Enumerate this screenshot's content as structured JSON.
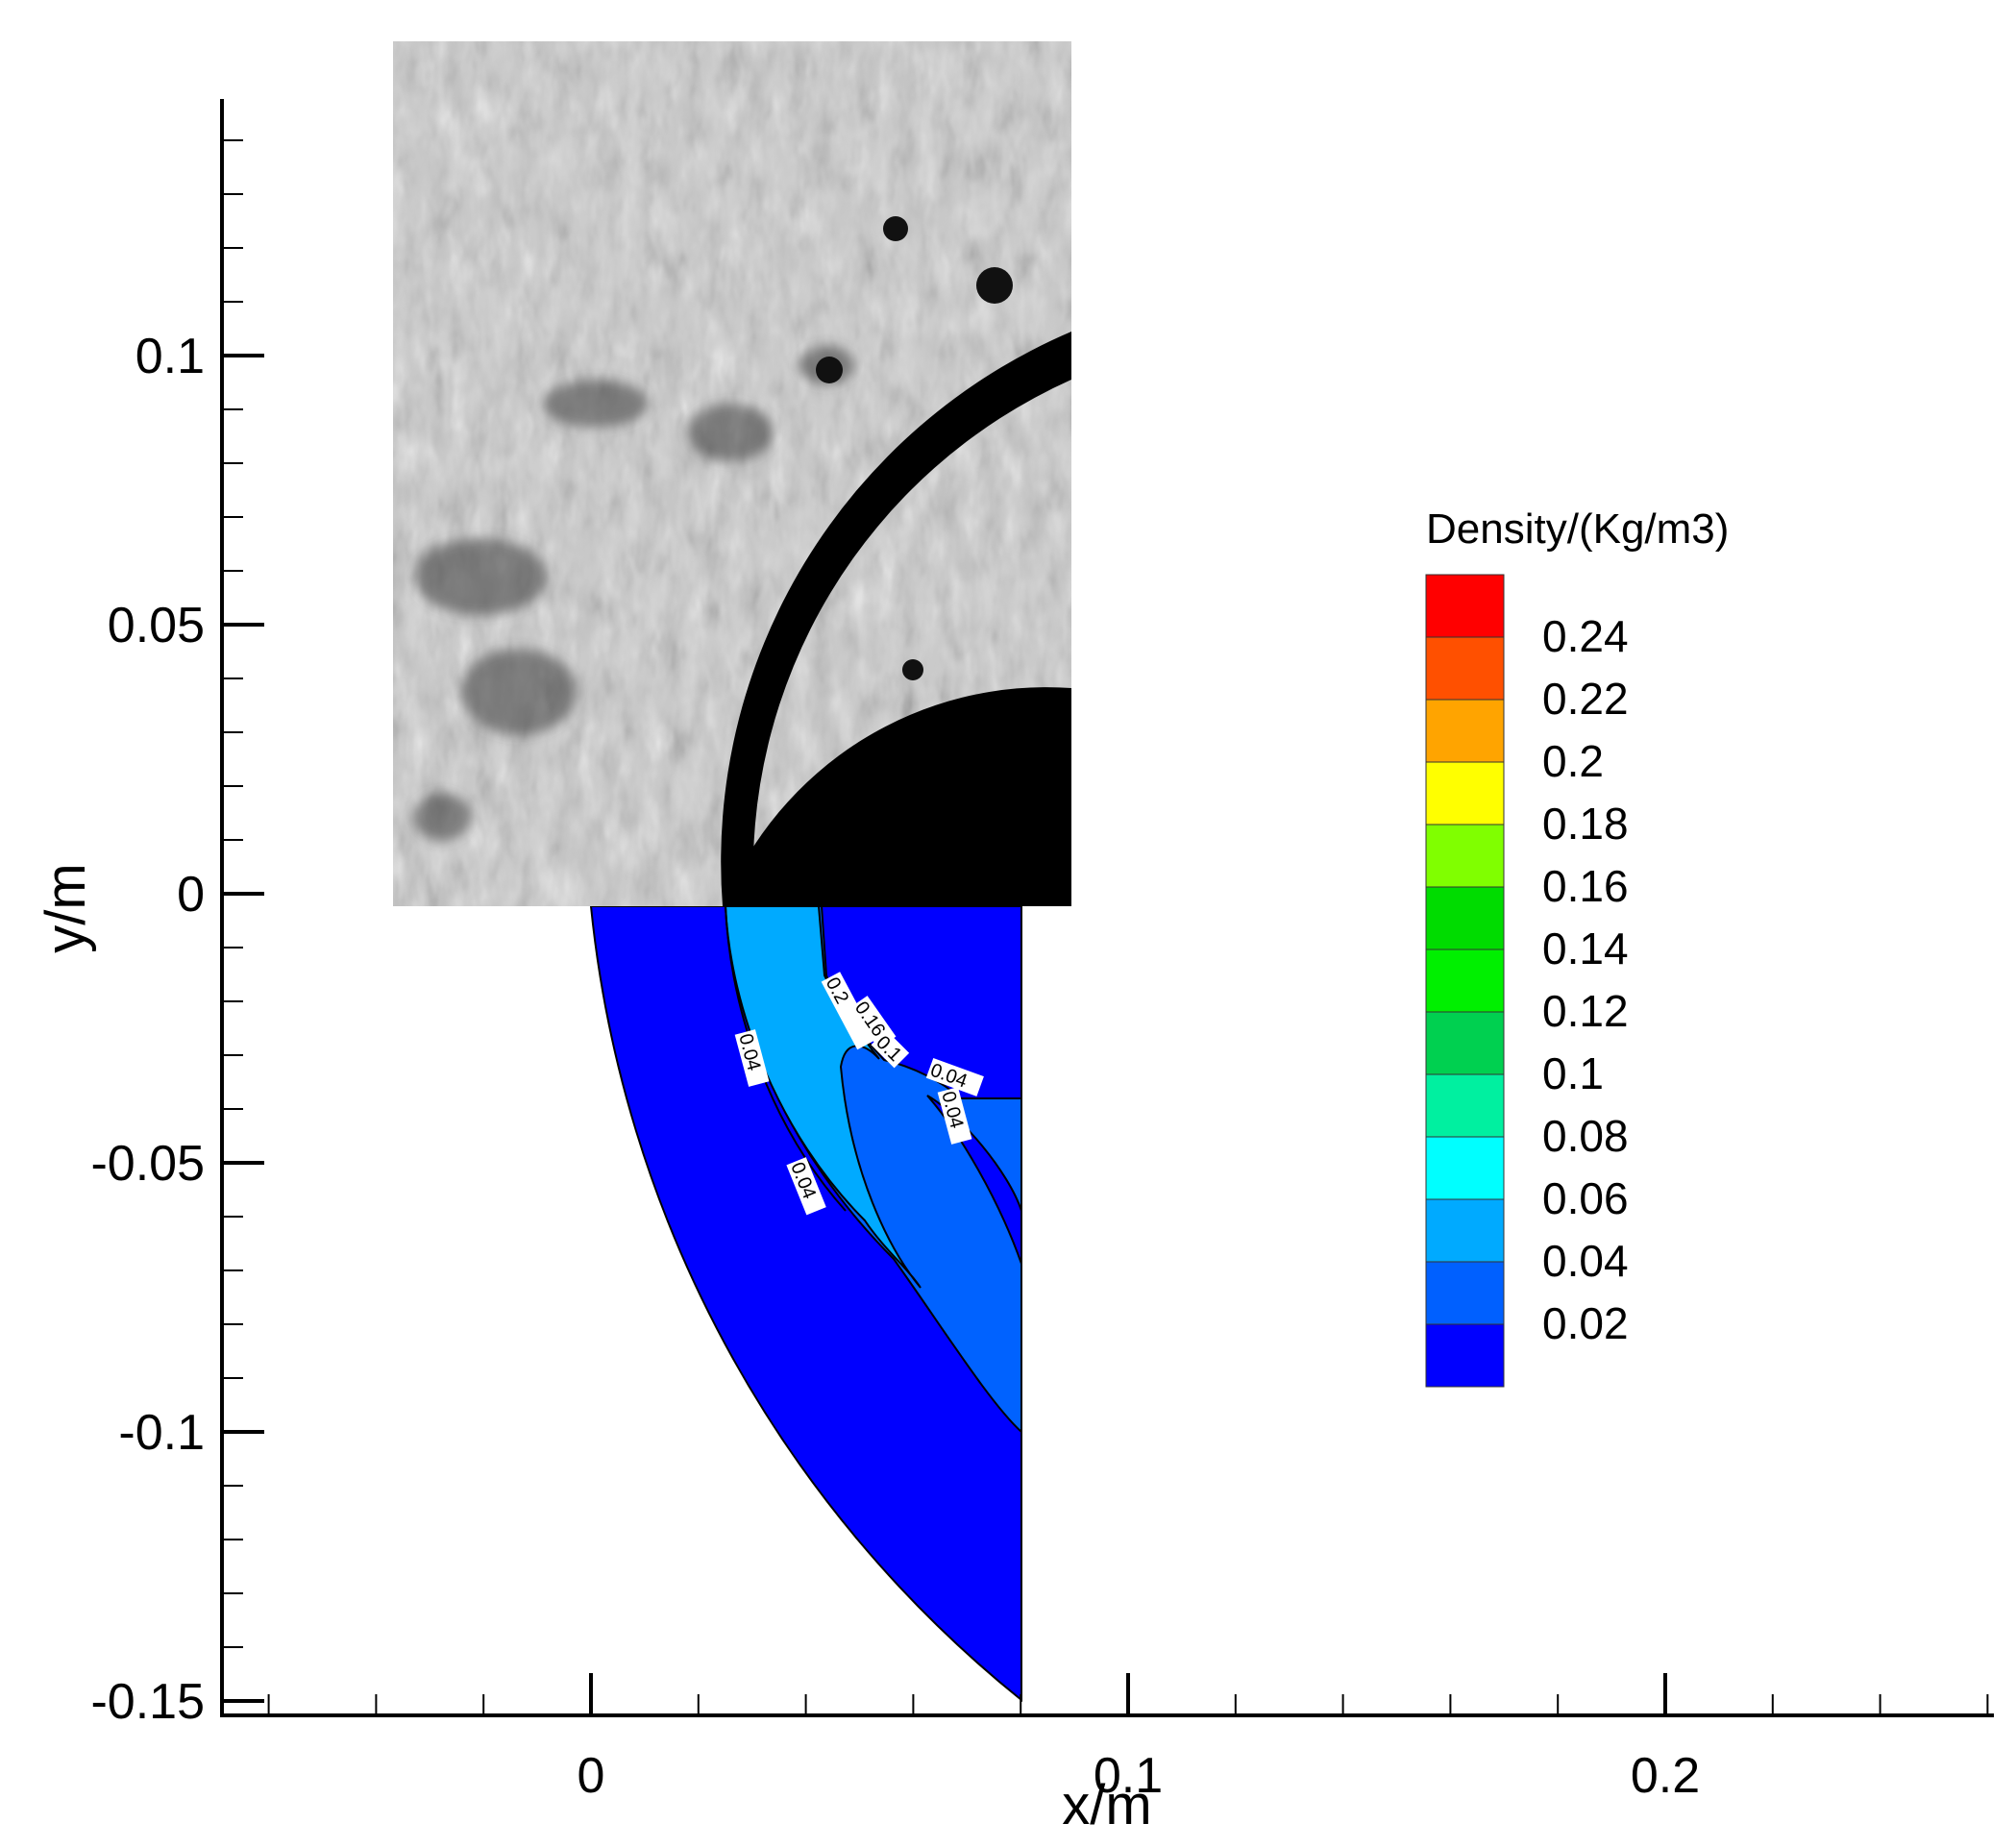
{
  "chart_data": {
    "type": "contour",
    "xlabel": "x/m",
    "ylabel": "y/m",
    "xlim": [
      -0.069,
      0.261
    ],
    "ylim": [
      -0.153,
      0.147
    ],
    "x_ticks": [
      {
        "value": 0,
        "label": "0"
      },
      {
        "value": 0.1,
        "label": "0.1"
      },
      {
        "value": 0.2,
        "label": "0.2"
      }
    ],
    "y_ticks": [
      {
        "value": 0.1,
        "label": "0.1"
      },
      {
        "value": 0.05,
        "label": "0.05"
      },
      {
        "value": 0,
        "label": "0"
      },
      {
        "value": -0.05,
        "label": "-0.05"
      },
      {
        "value": -0.1,
        "label": "-0.1"
      },
      {
        "value": -0.15,
        "label": "-0.15"
      }
    ],
    "legend": {
      "title": "Density/(Kg/m3)",
      "placement": "right",
      "levels": [
        {
          "label": "0.24",
          "color": "#ff0000"
        },
        {
          "label": "0.22",
          "color": "#ff5000"
        },
        {
          "label": "0.2",
          "color": "#ffa400"
        },
        {
          "label": "0.18",
          "color": "#ffff00"
        },
        {
          "label": "0.16",
          "color": "#80ff00"
        },
        {
          "label": "0.14",
          "color": "#00dc00"
        },
        {
          "label": "0.12",
          "color": "#00f000"
        },
        {
          "label": "0.1",
          "color": "#00d050"
        },
        {
          "label": "0.08",
          "color": "#00f0a0"
        },
        {
          "label": "0.06",
          "color": "#00ffff"
        },
        {
          "label": "0.04",
          "color": "#00aaff"
        },
        {
          "label": "0.02",
          "color": "#0060ff"
        },
        {
          "label": "",
          "color": "#0000ff"
        }
      ]
    },
    "inset": {
      "description_type": "schlieren photograph",
      "extent_x": [
        -0.037,
        0.089
      ],
      "extent_y": [
        -0.002,
        0.158
      ]
    },
    "contour_labels": [
      "0.2",
      "0.16",
      "0.1",
      "0.04",
      "0.04",
      "0.04",
      "0.04"
    ],
    "regions": [
      {
        "level": "0.02",
        "color": "#0000ff"
      },
      {
        "level": "0.04",
        "color": "#0062ff"
      },
      {
        "level": "0.06",
        "color": "#00aaff"
      }
    ]
  }
}
